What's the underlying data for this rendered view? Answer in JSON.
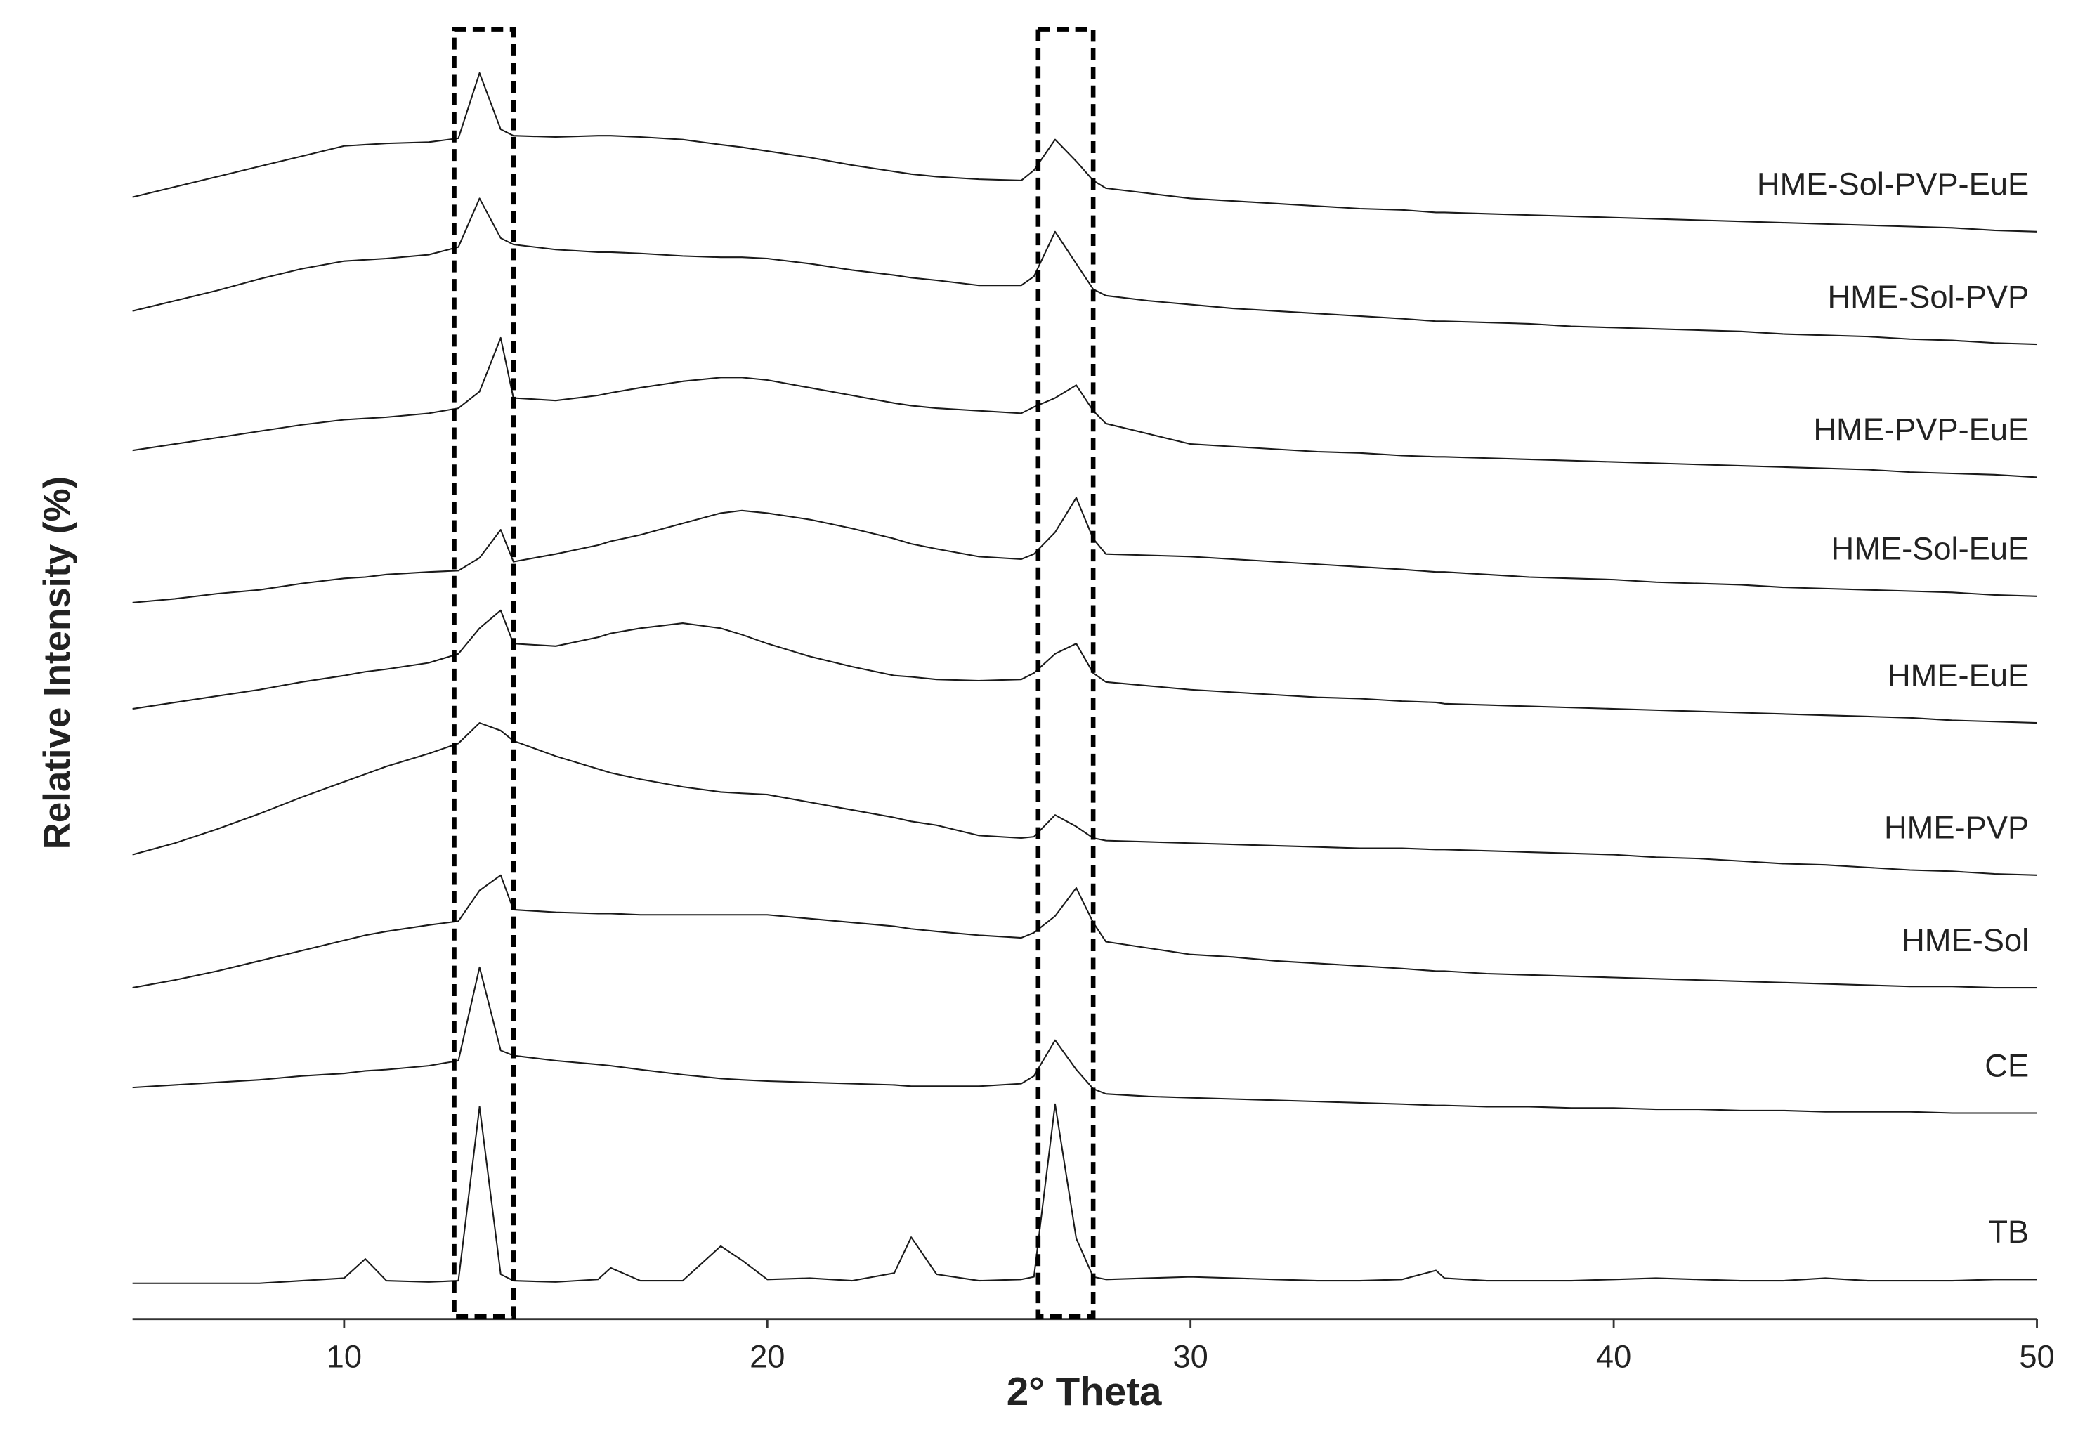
{
  "chart_data": {
    "type": "line",
    "xlabel": "2° Theta",
    "ylabel": "Relative Intensity (%)",
    "x": [
      5,
      6,
      7,
      8,
      9,
      10,
      10.5,
      11,
      12,
      12.7,
      13.2,
      13.7,
      14,
      15,
      16,
      16.3,
      17,
      18,
      18.9,
      19.4,
      20,
      21,
      22,
      23,
      23.4,
      24,
      25,
      26,
      26.3,
      26.8,
      27.3,
      27.7,
      28,
      29,
      30,
      31,
      32,
      33,
      34,
      35,
      35.8,
      36,
      37,
      38,
      39,
      40,
      41,
      42,
      43,
      44,
      45,
      46,
      47,
      48,
      49,
      50
    ],
    "xlim": [
      5,
      50
    ],
    "xticks": [
      10,
      20,
      30,
      40,
      50
    ],
    "ylim": [
      0,
      100
    ],
    "highlight_regions": [
      [
        12.6,
        14.0
      ],
      [
        26.4,
        27.7
      ]
    ],
    "series": [
      {
        "name": "HME-Sol-PVP-EuE",
        "color": "#1a1a1a",
        "values": [
          87.7,
          88.5,
          89.3,
          90.1,
          90.9,
          91.7,
          91.8,
          91.9,
          92.0,
          92.3,
          97.4,
          93.0,
          92.5,
          92.4,
          92.5,
          92.5,
          92.4,
          92.2,
          91.8,
          91.6,
          91.3,
          90.8,
          90.2,
          89.7,
          89.5,
          89.3,
          89.1,
          89.0,
          89.8,
          92.2,
          90.5,
          89.0,
          88.4,
          88.0,
          87.6,
          87.4,
          87.2,
          87.0,
          86.8,
          86.7,
          86.5,
          86.5,
          86.4,
          86.3,
          86.2,
          86.1,
          86.0,
          85.9,
          85.8,
          85.7,
          85.6,
          85.5,
          85.4,
          85.3,
          85.1,
          85.0
        ]
      },
      {
        "name": "HME-Sol-PVP",
        "color": "#1a1a1a",
        "values": [
          78.8,
          79.6,
          80.4,
          81.3,
          82.1,
          82.7,
          82.8,
          82.9,
          83.2,
          83.8,
          87.6,
          84.5,
          84.0,
          83.6,
          83.4,
          83.4,
          83.3,
          83.1,
          83.0,
          83.0,
          82.9,
          82.5,
          82.0,
          81.6,
          81.4,
          81.2,
          80.8,
          80.8,
          81.5,
          85.0,
          82.5,
          80.5,
          80.0,
          79.6,
          79.3,
          79.0,
          78.8,
          78.6,
          78.4,
          78.2,
          78.0,
          78.0,
          77.9,
          77.8,
          77.6,
          77.5,
          77.4,
          77.3,
          77.2,
          77.0,
          76.9,
          76.8,
          76.6,
          76.5,
          76.3,
          76.2
        ]
      },
      {
        "name": "HME-PVP-EuE",
        "color": "#1a1a1a",
        "values": [
          67.9,
          68.4,
          68.9,
          69.4,
          69.9,
          70.3,
          70.4,
          70.5,
          70.8,
          71.2,
          72.5,
          76.7,
          72.0,
          71.8,
          72.2,
          72.4,
          72.8,
          73.3,
          73.6,
          73.6,
          73.4,
          72.8,
          72.2,
          71.6,
          71.4,
          71.2,
          71.0,
          70.8,
          71.3,
          72.0,
          73.0,
          71.0,
          70.0,
          69.2,
          68.4,
          68.2,
          68.0,
          67.8,
          67.7,
          67.5,
          67.4,
          67.4,
          67.3,
          67.2,
          67.1,
          67.0,
          66.9,
          66.8,
          66.7,
          66.6,
          66.5,
          66.4,
          66.2,
          66.1,
          66.0,
          65.8
        ]
      },
      {
        "name": "HME-Sol-EuE",
        "color": "#1a1a1a",
        "values": [
          56.0,
          56.3,
          56.7,
          57.0,
          57.5,
          57.9,
          58.0,
          58.2,
          58.4,
          58.5,
          59.5,
          61.7,
          59.2,
          59.8,
          60.5,
          60.8,
          61.3,
          62.2,
          63.0,
          63.2,
          63.0,
          62.5,
          61.8,
          61.0,
          60.6,
          60.2,
          59.6,
          59.4,
          59.8,
          61.5,
          64.2,
          61.0,
          59.8,
          59.7,
          59.6,
          59.4,
          59.2,
          59.0,
          58.8,
          58.6,
          58.4,
          58.4,
          58.2,
          58.0,
          57.9,
          57.8,
          57.6,
          57.5,
          57.4,
          57.2,
          57.1,
          57.0,
          56.9,
          56.8,
          56.6,
          56.5
        ]
      },
      {
        "name": "HME-EuE",
        "color": "#1a1a1a",
        "values": [
          47.7,
          48.2,
          48.7,
          49.2,
          49.8,
          50.3,
          50.6,
          50.8,
          51.3,
          52.0,
          54.0,
          55.4,
          52.8,
          52.6,
          53.3,
          53.6,
          54.0,
          54.4,
          54.0,
          53.5,
          52.8,
          51.8,
          51.0,
          50.3,
          50.2,
          50.0,
          49.9,
          50.0,
          50.5,
          52.0,
          52.8,
          50.5,
          49.8,
          49.5,
          49.2,
          49.0,
          48.8,
          48.6,
          48.5,
          48.3,
          48.2,
          48.1,
          48.0,
          47.9,
          47.8,
          47.7,
          47.6,
          47.5,
          47.4,
          47.3,
          47.2,
          47.1,
          47.0,
          46.8,
          46.7,
          46.6
        ]
      },
      {
        "name": "HME-PVP",
        "color": "#1a1a1a",
        "values": [
          36.3,
          37.2,
          38.3,
          39.5,
          40.8,
          42.0,
          42.6,
          43.2,
          44.2,
          45.0,
          46.6,
          46.0,
          45.2,
          44.0,
          43.0,
          42.7,
          42.2,
          41.6,
          41.2,
          41.1,
          41.0,
          40.4,
          39.8,
          39.2,
          38.9,
          38.6,
          37.8,
          37.6,
          37.7,
          39.4,
          38.5,
          37.6,
          37.4,
          37.3,
          37.2,
          37.1,
          37.0,
          36.9,
          36.8,
          36.8,
          36.7,
          36.7,
          36.6,
          36.5,
          36.4,
          36.3,
          36.1,
          36.0,
          35.8,
          35.6,
          35.5,
          35.3,
          35.1,
          35.0,
          34.8,
          34.7
        ]
      },
      {
        "name": "HME-Sol",
        "color": "#1a1a1a",
        "values": [
          25.9,
          26.5,
          27.2,
          28.0,
          28.8,
          29.6,
          30.0,
          30.3,
          30.8,
          31.1,
          33.5,
          34.7,
          32.0,
          31.8,
          31.7,
          31.7,
          31.6,
          31.6,
          31.6,
          31.6,
          31.6,
          31.3,
          31.0,
          30.7,
          30.5,
          30.3,
          30.0,
          29.8,
          30.2,
          31.5,
          33.7,
          31.0,
          29.5,
          29.0,
          28.5,
          28.3,
          28.0,
          27.8,
          27.6,
          27.4,
          27.2,
          27.2,
          27.0,
          26.9,
          26.8,
          26.7,
          26.6,
          26.5,
          26.4,
          26.3,
          26.2,
          26.1,
          26.0,
          26.0,
          25.9,
          25.9
        ]
      },
      {
        "name": "CE",
        "color": "#1a1a1a",
        "values": [
          18.1,
          18.3,
          18.5,
          18.7,
          19.0,
          19.2,
          19.4,
          19.5,
          19.8,
          20.2,
          27.5,
          21.0,
          20.6,
          20.2,
          19.9,
          19.8,
          19.5,
          19.1,
          18.8,
          18.7,
          18.6,
          18.5,
          18.4,
          18.3,
          18.2,
          18.2,
          18.2,
          18.4,
          19.0,
          21.8,
          19.5,
          18.0,
          17.6,
          17.4,
          17.3,
          17.2,
          17.1,
          17.0,
          16.9,
          16.8,
          16.7,
          16.7,
          16.6,
          16.6,
          16.5,
          16.5,
          16.4,
          16.4,
          16.3,
          16.3,
          16.2,
          16.2,
          16.2,
          16.1,
          16.1,
          16.1
        ]
      },
      {
        "name": "TB",
        "color": "#1a1a1a",
        "values": [
          2.8,
          2.8,
          2.8,
          2.8,
          3.0,
          3.2,
          4.7,
          3.0,
          2.9,
          3.0,
          16.6,
          3.5,
          3.0,
          2.9,
          3.1,
          4.0,
          3.0,
          3.0,
          5.7,
          4.6,
          3.1,
          3.2,
          3.0,
          3.6,
          6.4,
          3.5,
          3.0,
          3.1,
          3.3,
          16.8,
          6.3,
          3.3,
          3.1,
          3.2,
          3.3,
          3.2,
          3.1,
          3.0,
          3.0,
          3.1,
          3.8,
          3.2,
          3.0,
          3.0,
          3.0,
          3.1,
          3.2,
          3.1,
          3.0,
          3.0,
          3.2,
          3.0,
          3.0,
          3.0,
          3.1,
          3.1
        ]
      }
    ]
  }
}
